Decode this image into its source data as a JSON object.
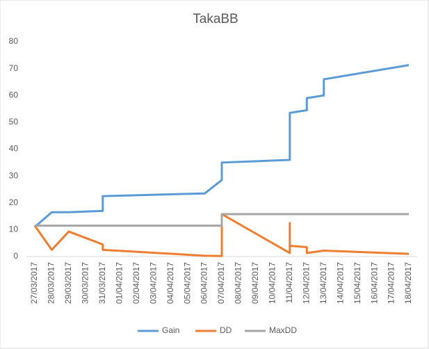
{
  "chart_data": {
    "type": "line",
    "title": "TakaBB",
    "categories": [
      "27/03/2017",
      "28/03/2017",
      "29/03/2017",
      "30/03/2017",
      "31/03/2017",
      "01/04/2017",
      "02/04/2017",
      "03/04/2017",
      "04/04/2017",
      "05/04/2017",
      "06/04/2017",
      "07/04/2017",
      "08/04/2017",
      "09/04/2017",
      "10/04/2017",
      "11/04/2017",
      "12/04/2017",
      "13/04/2017",
      "14/04/2017",
      "15/04/2017",
      "16/04/2017",
      "17/04/2017",
      "18/04/2017"
    ],
    "series": [
      {
        "name": "Gain",
        "color": "#5b9bd5",
        "x": [
          "27/03/2017",
          "28/03/2017",
          "29/03/2017",
          "31/03/2017",
          "31/03/2017",
          "06/04/2017",
          "07/04/2017",
          "07/04/2017",
          "11/04/2017",
          "11/04/2017",
          "12/04/2017",
          "12/04/2017",
          "13/04/2017",
          "13/04/2017",
          "18/04/2017"
        ],
        "values": [
          11,
          16.5,
          16.5,
          17,
          22.5,
          23.5,
          28.5,
          35,
          36,
          53.5,
          54.5,
          59,
          60,
          66,
          71.3
        ]
      },
      {
        "name": "DD",
        "color": "#ed7d31",
        "x": [
          "27/03/2017",
          "28/03/2017",
          "29/03/2017",
          "31/03/2017",
          "31/03/2017",
          "06/04/2017",
          "07/04/2017",
          "07/04/2017",
          "11/04/2017",
          "11/04/2017",
          "11/04/2017",
          "12/04/2017",
          "12/04/2017",
          "13/04/2017",
          "18/04/2017"
        ],
        "values": [
          11.5,
          2.5,
          9.3,
          4.5,
          2.5,
          0.3,
          0.2,
          15.8,
          1.3,
          12.5,
          4,
          3.5,
          1.3,
          2.2,
          1
        ]
      },
      {
        "name": "MaxDD",
        "color": "#a5a5a5",
        "x": [
          "27/03/2017",
          "07/04/2017",
          "07/04/2017",
          "18/04/2017"
        ],
        "values": [
          11.5,
          11.5,
          15.8,
          15.8
        ]
      }
    ],
    "ylim": [
      0,
      80
    ],
    "yticks": [
      0,
      10,
      20,
      30,
      40,
      50,
      60,
      70,
      80
    ],
    "grid": false,
    "legend": "bottom"
  }
}
